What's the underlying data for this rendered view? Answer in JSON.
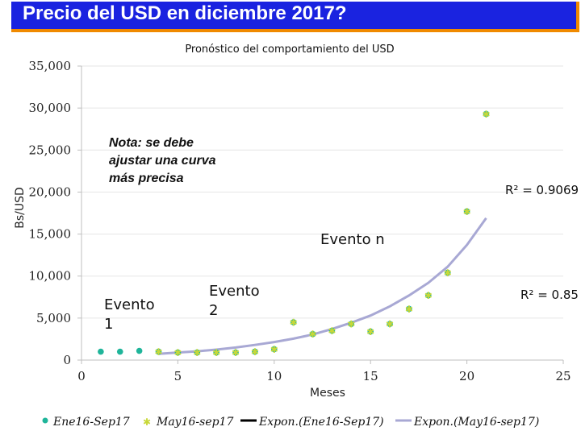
{
  "slide": {
    "title": "Precio del USD en diciembre 2017?",
    "colors": {
      "title_bg": "#1a23e0",
      "title_border": "#f08a00",
      "title_text": "#ffffff"
    }
  },
  "chart_data": {
    "type": "scatter",
    "title": "Pronóstico del comportamiento del USD",
    "xlabel": "Meses",
    "ylabel": "Bs/USD",
    "xlim": [
      0,
      25
    ],
    "ylim": [
      0,
      35000
    ],
    "x_ticks": [
      "0",
      "5",
      "10",
      "15",
      "20",
      "25"
    ],
    "y_ticks": [
      "0",
      "5,000",
      "10,000",
      "15,000",
      "20,000",
      "25,000",
      "30,000",
      "35,000"
    ],
    "series": [
      {
        "name": "Ene16-Sep17",
        "marker": "circle-star",
        "color": "#1fb59a",
        "x": [
          1,
          2,
          3,
          4,
          5,
          6,
          7,
          8,
          9,
          10,
          11,
          12,
          13,
          14,
          15,
          16,
          17,
          18,
          19,
          20,
          21
        ],
        "y": [
          1000,
          1000,
          1100,
          1000,
          900,
          900,
          900,
          900,
          1000,
          1300,
          4500,
          3100,
          3500,
          4300,
          3400,
          4300,
          6100,
          7700,
          10400,
          17700,
          29300
        ]
      },
      {
        "name": "May16-sep17",
        "marker": "star",
        "color": "#c8d838",
        "x": [
          4,
          5,
          6,
          7,
          8,
          9,
          10,
          11,
          12,
          13,
          14,
          15,
          16,
          17,
          18,
          19,
          20,
          21
        ],
        "y": [
          1000,
          900,
          900,
          900,
          900,
          1000,
          1300,
          4500,
          3100,
          3500,
          4300,
          3400,
          4300,
          6100,
          7700,
          10400,
          17700,
          29300
        ]
      },
      {
        "name": "Expon.(Ene16-Sep17)",
        "type": "line",
        "color": "#000000"
      },
      {
        "name": "Expon.(May16-sep17)",
        "type": "line",
        "color": "#a8a8d4",
        "x": [
          4,
          5,
          6,
          7,
          8,
          9,
          10,
          11,
          12,
          13,
          14,
          15,
          16,
          17,
          18,
          19,
          20,
          21
        ],
        "y": [
          750,
          900,
          1050,
          1250,
          1500,
          1800,
          2150,
          2550,
          3050,
          3700,
          4450,
          5300,
          6400,
          7700,
          9200,
          11100,
          13700,
          16900
        ]
      }
    ],
    "annotations": {
      "note": [
        "Nota: se debe",
        "ajustar una curva",
        "más precisa"
      ],
      "evento_1": [
        "Evento",
        "1"
      ],
      "evento_2": [
        "Evento",
        "2"
      ],
      "evento_n": "Evento n",
      "r2_a": "R² = 0.9069",
      "r2_b": "R² = 0.85"
    },
    "legend": "bottom"
  }
}
